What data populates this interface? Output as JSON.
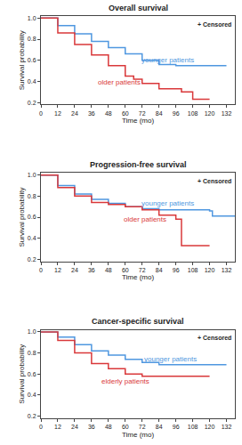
{
  "chart_data": [
    {
      "type": "line",
      "title": "Overall survival",
      "x_label": "Time (mo)",
      "y_label": "Survival probability",
      "xlim": [
        0,
        138
      ],
      "xticks": [
        0,
        12,
        24,
        36,
        48,
        60,
        72,
        84,
        96,
        108,
        120,
        132
      ],
      "ylim": [
        0.18,
        1.02
      ],
      "yticks": [
        0.2,
        0.4,
        0.6,
        0.8,
        {
          "value": 1.0,
          "label": "1.0"
        }
      ],
      "grid": false,
      "line_style": "step",
      "annotations": [
        {
          "text": "+ Censored"
        }
      ],
      "series": [
        {
          "name": "younger patients",
          "color": "#4f97e0",
          "label_x": 90,
          "label_y": 0.6,
          "x": [
            0,
            12,
            24,
            36,
            48,
            60,
            72,
            84,
            96,
            132
          ],
          "values": [
            1.0,
            0.93,
            0.85,
            0.78,
            0.72,
            0.66,
            0.6,
            0.56,
            0.55,
            0.55
          ]
        },
        {
          "name": "older patients",
          "color": "#d9383a",
          "label_x": 56,
          "label_y": 0.39,
          "x": [
            0,
            12,
            24,
            36,
            48,
            60,
            66,
            72,
            84,
            100,
            108,
            120
          ],
          "values": [
            1.0,
            0.86,
            0.75,
            0.65,
            0.55,
            0.45,
            0.42,
            0.38,
            0.33,
            0.3,
            0.23,
            0.23
          ]
        }
      ]
    },
    {
      "type": "line",
      "title": "Progression-free survival",
      "x_label": "Time (mo)",
      "y_label": "Survival probability",
      "xlim": [
        0,
        138
      ],
      "xticks": [
        0,
        12,
        24,
        36,
        48,
        60,
        72,
        84,
        96,
        108,
        120,
        132
      ],
      "ylim": [
        0.18,
        1.02
      ],
      "yticks": [
        0.2,
        0.4,
        0.6,
        0.8,
        {
          "value": 1.0,
          "label": "1.0"
        }
      ],
      "grid": false,
      "line_style": "step",
      "annotations": [
        {
          "text": "+ Censored"
        }
      ],
      "series": [
        {
          "name": "younger patients",
          "color": "#4f97e0",
          "label_x": 90,
          "label_y": 0.73,
          "x": [
            0,
            12,
            24,
            36,
            48,
            60,
            72,
            84,
            120,
            122,
            138
          ],
          "values": [
            1.0,
            0.9,
            0.82,
            0.77,
            0.73,
            0.7,
            0.68,
            0.67,
            0.66,
            0.61,
            0.61
          ]
        },
        {
          "name": "older patients",
          "color": "#d9383a",
          "label_x": 74,
          "label_y": 0.58,
          "x": [
            0,
            12,
            24,
            36,
            48,
            60,
            72,
            84,
            96,
            100,
            120
          ],
          "values": [
            1.0,
            0.88,
            0.8,
            0.74,
            0.72,
            0.7,
            0.67,
            0.62,
            0.58,
            0.33,
            0.33
          ]
        }
      ]
    },
    {
      "type": "line",
      "title": "Cancer-specific survival",
      "x_label": "Time (mo)",
      "y_label": "Survival probability",
      "xlim": [
        0,
        138
      ],
      "xticks": [
        0,
        12,
        24,
        36,
        48,
        60,
        72,
        84,
        96,
        108,
        120,
        132
      ],
      "ylim": [
        0.18,
        1.02
      ],
      "yticks": [
        0.2,
        0.4,
        0.6,
        0.8,
        {
          "value": 1.0,
          "label": "1.0"
        }
      ],
      "grid": false,
      "line_style": "step",
      "annotations": [
        {
          "text": "+ Censored"
        }
      ],
      "series": [
        {
          "name": "younger patients",
          "color": "#4f97e0",
          "label_x": 92,
          "label_y": 0.74,
          "x": [
            0,
            12,
            24,
            36,
            48,
            60,
            72,
            84,
            132
          ],
          "values": [
            1.0,
            0.95,
            0.88,
            0.82,
            0.78,
            0.74,
            0.71,
            0.69,
            0.69
          ]
        },
        {
          "name": "elderly patients",
          "color": "#d9383a",
          "label_x": 60,
          "label_y": 0.53,
          "x": [
            0,
            12,
            24,
            36,
            48,
            60,
            72,
            120
          ],
          "values": [
            1.0,
            0.92,
            0.8,
            0.7,
            0.65,
            0.6,
            0.58,
            0.58
          ]
        }
      ]
    }
  ]
}
